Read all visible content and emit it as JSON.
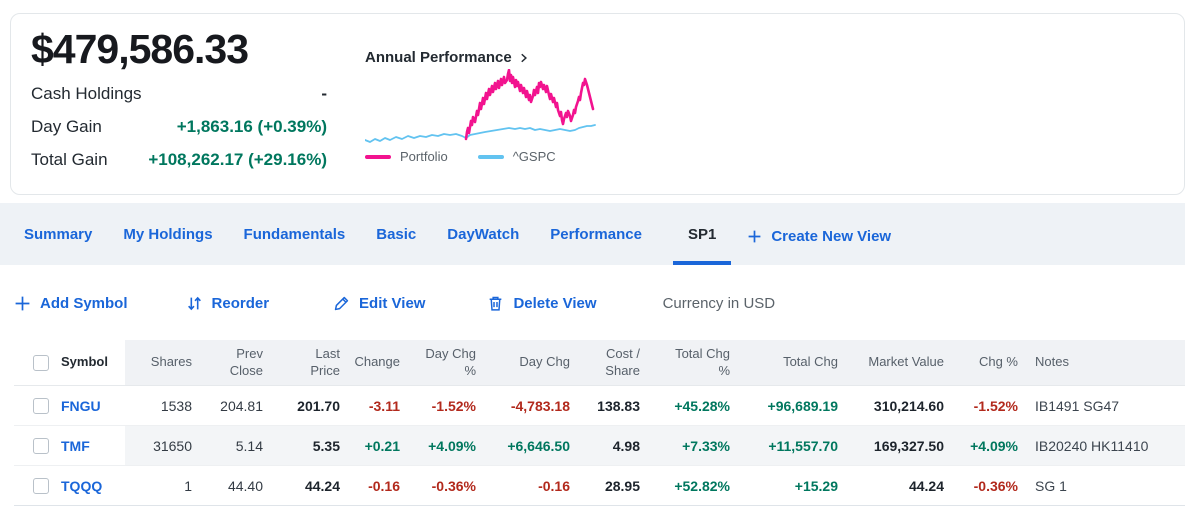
{
  "portfolio_summary": {
    "total_value": "$479,586.33",
    "stats": [
      {
        "label": "Cash Holdings",
        "value": "-",
        "sentiment": "neutral"
      },
      {
        "label": "Day Gain",
        "value": "+1,863.16 (+0.39%)",
        "sentiment": "positive"
      },
      {
        "label": "Total Gain",
        "value": "+108,262.17 (+29.16%)",
        "sentiment": "positive"
      }
    ]
  },
  "performance_chart": {
    "title": "Annual Performance",
    "chart_data": {
      "type": "line",
      "title": "Annual Performance",
      "axes_visible": false,
      "legend_position": "bottom",
      "units": "sparkline, relative svg coords (232x78, y inverted)",
      "series": [
        {
          "name": "Portfolio",
          "color": "#f2138f",
          "points": [
            [
              101,
              70
            ],
            [
              102,
              63
            ],
            [
              103,
              59
            ],
            [
              104,
              64
            ],
            [
              106,
              52
            ],
            [
              107,
              56
            ],
            [
              108,
              48
            ],
            [
              110,
              53
            ],
            [
              112,
              42
            ],
            [
              113,
              46
            ],
            [
              115,
              34
            ],
            [
              116,
              40
            ],
            [
              118,
              29
            ],
            [
              119,
              35
            ],
            [
              121,
              24
            ],
            [
              122,
              30
            ],
            [
              124,
              20
            ],
            [
              125,
              26
            ],
            [
              127,
              17
            ],
            [
              128,
              23
            ],
            [
              130,
              14
            ],
            [
              131,
              20
            ],
            [
              133,
              12
            ],
            [
              134,
              19
            ],
            [
              136,
              10
            ],
            [
              137,
              16
            ],
            [
              139,
              8
            ],
            [
              140,
              14
            ],
            [
              142,
              11
            ],
            [
              143,
              5
            ],
            [
              144,
              1
            ],
            [
              145,
              12
            ],
            [
              146,
              6
            ],
            [
              147,
              14
            ],
            [
              148,
              8
            ],
            [
              150,
              18
            ],
            [
              151,
              11
            ],
            [
              152,
              17
            ],
            [
              153,
              13
            ],
            [
              155,
              22
            ],
            [
              156,
              16
            ],
            [
              158,
              24
            ],
            [
              159,
              19
            ],
            [
              161,
              28
            ],
            [
              162,
              22
            ],
            [
              164,
              31
            ],
            [
              165,
              26
            ],
            [
              166,
              33
            ],
            [
              168,
              27
            ],
            [
              169,
              21
            ],
            [
              170,
              26
            ],
            [
              172,
              18
            ],
            [
              173,
              24
            ],
            [
              174,
              14
            ],
            [
              175,
              18
            ],
            [
              176,
              13
            ],
            [
              178,
              20
            ],
            [
              179,
              16
            ],
            [
              181,
              23
            ],
            [
              182,
              17
            ],
            [
              184,
              26
            ],
            [
              185,
              30
            ],
            [
              186,
              25
            ],
            [
              188,
              33
            ],
            [
              189,
              29
            ],
            [
              191,
              38
            ],
            [
              192,
              34
            ],
            [
              193,
              41
            ],
            [
              195,
              47
            ],
            [
              196,
              43
            ],
            [
              197,
              51
            ],
            [
              198,
              55
            ],
            [
              199,
              50
            ],
            [
              201,
              44
            ],
            [
              202,
              48
            ],
            [
              203,
              42
            ],
            [
              205,
              47
            ],
            [
              206,
              52
            ],
            [
              208,
              46
            ],
            [
              209,
              41
            ],
            [
              210,
              44
            ],
            [
              211,
              38
            ],
            [
              213,
              32
            ],
            [
              214,
              28
            ],
            [
              215,
              31
            ],
            [
              216,
              24
            ],
            [
              217,
              19
            ],
            [
              218,
              14
            ],
            [
              219,
              16
            ],
            [
              220,
              10
            ],
            [
              221,
              13
            ],
            [
              222,
              16
            ],
            [
              224,
              24
            ],
            [
              226,
              32
            ],
            [
              228,
              40
            ]
          ]
        },
        {
          "name": "^GSPC",
          "color": "#62c3f0",
          "points": [
            [
              0,
              71
            ],
            [
              5,
              73
            ],
            [
              10,
              70
            ],
            [
              15,
              72
            ],
            [
              20,
              69
            ],
            [
              25,
              71
            ],
            [
              31,
              68
            ],
            [
              37,
              70
            ],
            [
              43,
              67
            ],
            [
              49,
              69
            ],
            [
              55,
              67
            ],
            [
              61,
              68
            ],
            [
              67,
              66
            ],
            [
              73,
              67
            ],
            [
              79,
              65
            ],
            [
              85,
              66
            ],
            [
              91,
              65
            ],
            [
              97,
              67
            ],
            [
              101,
              69
            ],
            [
              105,
              66
            ],
            [
              110,
              65
            ],
            [
              115,
              64
            ],
            [
              120,
              63
            ],
            [
              126,
              62
            ],
            [
              132,
              61
            ],
            [
              138,
              60
            ],
            [
              144,
              59
            ],
            [
              150,
              60
            ],
            [
              155,
              59
            ],
            [
              160,
              60
            ],
            [
              165,
              59
            ],
            [
              170,
              61
            ],
            [
              175,
              60
            ],
            [
              180,
              61
            ],
            [
              185,
              62
            ],
            [
              190,
              61
            ],
            [
              195,
              60
            ],
            [
              200,
              61
            ],
            [
              205,
              62
            ],
            [
              210,
              61
            ],
            [
              214,
              59
            ],
            [
              218,
              58
            ],
            [
              222,
              57
            ],
            [
              226,
              57
            ],
            [
              230,
              56
            ]
          ]
        }
      ]
    }
  },
  "view_tabs": {
    "tabs": [
      "Summary",
      "My Holdings",
      "Fundamentals",
      "Basic",
      "DayWatch",
      "Performance",
      "SP1"
    ],
    "active_tab": "SP1",
    "create_new_view_label": "Create New View"
  },
  "toolbar": {
    "add_symbol_label": "Add Symbol",
    "reorder_label": "Reorder",
    "edit_view_label": "Edit View",
    "delete_view_label": "Delete View",
    "currency_label": "Currency in USD"
  },
  "holdings_table": {
    "columns": [
      "Symbol",
      "Shares",
      "Prev Close",
      "Last Price",
      "Change",
      "Day Chg %",
      "Day Chg",
      "Cost / Share",
      "Total Chg %",
      "Total Chg",
      "Market Value",
      "Chg %",
      "Notes"
    ],
    "rows": [
      {
        "symbol": "FNGU",
        "shares": "1538",
        "prev_close": "204.81",
        "last_price": "201.70",
        "change": "-3.11",
        "day_chg_pct": "-1.52%",
        "day_chg": "-4,783.18",
        "cost_share": "138.83",
        "total_chg_pct": "+45.28%",
        "total_chg": "+96,689.19",
        "market_value": "310,214.60",
        "chg_pct": "-1.52%",
        "notes": "IB1491 SG47"
      },
      {
        "symbol": "TMF",
        "shares": "31650",
        "prev_close": "5.14",
        "last_price": "5.35",
        "change": "+0.21",
        "day_chg_pct": "+4.09%",
        "day_chg": "+6,646.50",
        "cost_share": "4.98",
        "total_chg_pct": "+7.33%",
        "total_chg": "+11,557.70",
        "market_value": "169,327.50",
        "chg_pct": "+4.09%",
        "notes": "IB20240 HK11410"
      },
      {
        "symbol": "TQQQ",
        "shares": "1",
        "prev_close": "44.40",
        "last_price": "44.24",
        "change": "-0.16",
        "day_chg_pct": "-0.36%",
        "day_chg": "-0.16",
        "cost_share": "28.95",
        "total_chg_pct": "+52.82%",
        "total_chg": "+15.29",
        "market_value": "44.24",
        "chg_pct": "-0.36%",
        "notes": "SG 1"
      }
    ]
  },
  "colors": {
    "accent_blue": "#1a66d9",
    "positive_green": "#00775e",
    "negative_red": "#b2291c",
    "portfolio_line": "#f2138f",
    "benchmark_line": "#62c3f0",
    "tab_bar_bg": "#eef2f6"
  }
}
